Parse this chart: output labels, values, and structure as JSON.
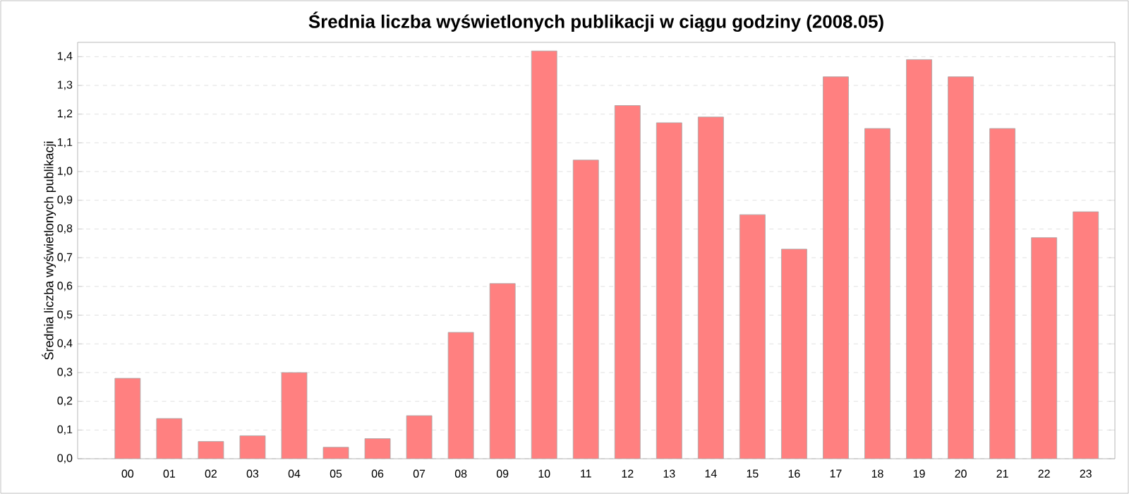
{
  "chart_data": {
    "type": "bar",
    "title": "Średnia liczba wyświetlonych publikacji w ciągu godziny (2008.05)",
    "ylabel": "Średnia liczba wyświetlonych publikacji",
    "categories": [
      "00",
      "01",
      "02",
      "03",
      "04",
      "05",
      "06",
      "07",
      "08",
      "09",
      "10",
      "11",
      "12",
      "13",
      "14",
      "15",
      "16",
      "17",
      "18",
      "19",
      "20",
      "21",
      "22",
      "23"
    ],
    "values": [
      0.28,
      0.14,
      0.06,
      0.08,
      0.3,
      0.04,
      0.07,
      0.15,
      0.44,
      0.61,
      1.42,
      1.04,
      1.23,
      1.17,
      1.19,
      0.85,
      0.73,
      1.33,
      1.15,
      1.39,
      1.33,
      1.15,
      0.77,
      0.86
    ],
    "color": "#ff8080",
    "ylim": [
      0,
      1.45
    ],
    "yticks": [
      {
        "value": 0,
        "label": "0,0"
      },
      {
        "value": 0.1,
        "label": "0,1"
      },
      {
        "value": 0.2,
        "label": "0,2"
      },
      {
        "value": 0.3,
        "label": "0,3"
      },
      {
        "value": 0.4,
        "label": "0,4"
      },
      {
        "value": 0.5,
        "label": "0,5"
      },
      {
        "value": 0.6,
        "label": "0,6"
      },
      {
        "value": 0.7,
        "label": "0,7"
      },
      {
        "value": 0.8,
        "label": "0,8"
      },
      {
        "value": 0.9,
        "label": "0,9"
      },
      {
        "value": 1.0,
        "label": "1,0"
      },
      {
        "value": 1.1,
        "label": "1,1"
      },
      {
        "value": 1.2,
        "label": "1,2"
      },
      {
        "value": 1.3,
        "label": "1,3"
      },
      {
        "value": 1.4,
        "label": "1,4"
      }
    ],
    "grid": "y"
  }
}
